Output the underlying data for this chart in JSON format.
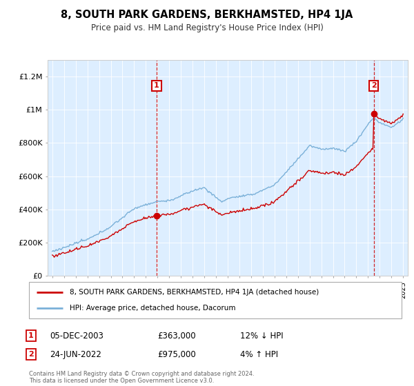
{
  "title": "8, SOUTH PARK GARDENS, BERKHAMSTED, HP4 1JA",
  "subtitle": "Price paid vs. HM Land Registry's House Price Index (HPI)",
  "legend_line1": "8, SOUTH PARK GARDENS, BERKHAMSTED, HP4 1JA (detached house)",
  "legend_line2": "HPI: Average price, detached house, Dacorum",
  "sale1_date": "05-DEC-2003",
  "sale1_price": 363000,
  "sale1_pct": "12% ↓ HPI",
  "sale2_date": "24-JUN-2022",
  "sale2_price": 975000,
  "sale2_pct": "4% ↑ HPI",
  "footer": "Contains HM Land Registry data © Crown copyright and database right 2024.\nThis data is licensed under the Open Government Licence v3.0.",
  "hpi_color": "#7ab0d8",
  "price_color": "#cc0000",
  "plot_bg": "#ddeeff",
  "ylim": [
    0,
    1300000
  ],
  "yticks": [
    0,
    200000,
    400000,
    600000,
    800000,
    1000000,
    1200000
  ],
  "ytick_labels": [
    "£0",
    "£200K",
    "£400K",
    "£600K",
    "£800K",
    "£1M",
    "£1.2M"
  ],
  "sale1_year": 2003.92,
  "sale2_year": 2022.48
}
